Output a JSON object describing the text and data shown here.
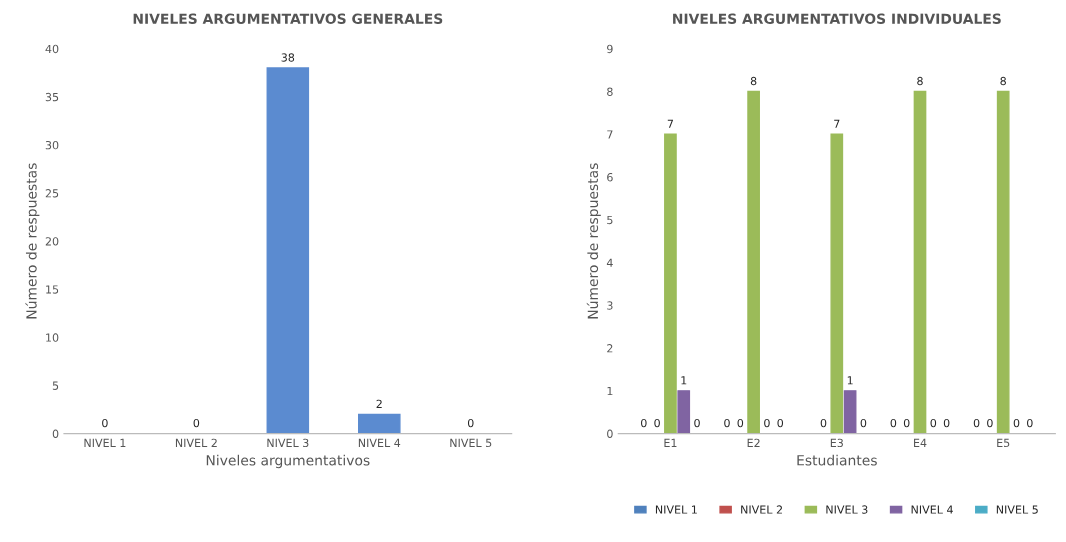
{
  "chart_data": [
    {
      "type": "bar",
      "title": "NIVELES ARGUMENTATIVOS GENERALES",
      "xlabel": "Niveles argumentativos",
      "ylabel": "Número de respuestas",
      "categories": [
        "NIVEL 1",
        "NIVEL 2",
        "NIVEL 3",
        "NIVEL 4",
        "NIVEL 5"
      ],
      "values": [
        0,
        0,
        38,
        2,
        0
      ],
      "color": "#5b8bd0",
      "ylim": [
        0,
        40
      ],
      "yticks": [
        0,
        5,
        10,
        15,
        20,
        25,
        30,
        35,
        40
      ],
      "data_labels": true,
      "grid": false,
      "legend": false
    },
    {
      "type": "bar",
      "title": "NIVELES ARGUMENTATIVOS INDIVIDUALES",
      "xlabel": "Estudiantes",
      "ylabel": "Número de respuestas",
      "categories": [
        "E1",
        "E2",
        "E3",
        "E4",
        "E5"
      ],
      "ylim": [
        0,
        9
      ],
      "yticks": [
        0,
        1,
        2,
        3,
        4,
        5,
        6,
        7,
        8,
        9
      ],
      "grid": false,
      "legend": "bottom",
      "series": [
        {
          "name": "NIVEL 1",
          "color": "#4f81bd",
          "values": [
            0,
            0,
            0,
            0,
            0
          ],
          "value_labels": [
            "0",
            "0",
            null,
            "0",
            "0"
          ]
        },
        {
          "name": "NIVEL 2",
          "color": "#c0504d",
          "values": [
            0,
            0,
            0,
            0,
            0
          ],
          "value_labels": [
            "0",
            "0",
            "0",
            "0",
            "0"
          ]
        },
        {
          "name": "NIVEL 3",
          "color": "#9bbb59",
          "values": [
            7,
            8,
            7,
            8,
            8
          ],
          "value_labels": [
            "7",
            "8",
            "7",
            "8",
            "8"
          ]
        },
        {
          "name": "NIVEL 4",
          "color": "#8064a2",
          "values": [
            1,
            0,
            1,
            0,
            0
          ],
          "value_labels": [
            "1",
            "0",
            "1",
            "0",
            "0"
          ]
        },
        {
          "name": "NIVEL 5",
          "color": "#4bacc6",
          "values": [
            0,
            0,
            0,
            0,
            0
          ],
          "value_labels": [
            "0",
            "0",
            "0",
            "0",
            "0"
          ]
        }
      ]
    }
  ]
}
